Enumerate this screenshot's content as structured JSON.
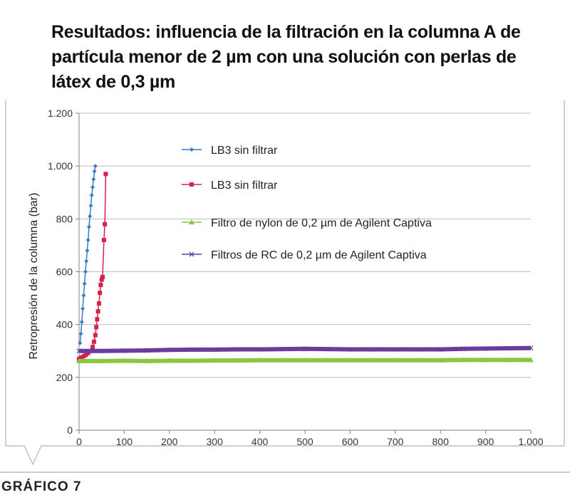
{
  "chart_data": {
    "type": "line",
    "title": "Resultados: influencia de la filtración en la columna A de partícula menor de 2 µm con una solución con perlas de látex de 0,3 µm",
    "xlabel": "",
    "ylabel": "Retropresión de la columna (bar)",
    "xlim": [
      0,
      1000
    ],
    "ylim": [
      0,
      1200
    ],
    "xticks": [
      0,
      100,
      200,
      300,
      400,
      500,
      600,
      700,
      800,
      900,
      1000
    ],
    "xtick_labels": [
      "0",
      "100",
      "200",
      "300",
      "400",
      "500",
      "600",
      "700",
      "800",
      "900",
      "1.000"
    ],
    "yticks": [
      0,
      200,
      400,
      600,
      800,
      1000,
      1200
    ],
    "ytick_labels": [
      "0",
      "200",
      "400",
      "600",
      "800",
      "1.000",
      "1.200"
    ],
    "grid": "horizontal",
    "legend_position": "inside-top-right",
    "series": [
      {
        "name": "LB3 sin filtrar",
        "color": "#3a7cc0",
        "marker": "diamond",
        "x": [
          2,
          4,
          6,
          8,
          10,
          12,
          14,
          16,
          18,
          20,
          22,
          24,
          26,
          28,
          30,
          32,
          34,
          36
        ],
        "y": [
          330,
          365,
          410,
          460,
          510,
          555,
          600,
          640,
          680,
          720,
          770,
          810,
          850,
          890,
          920,
          950,
          980,
          1000
        ]
      },
      {
        "name": "LB3 sin filtrar",
        "color": "#d6224a",
        "marker": "square",
        "x": [
          0,
          5,
          10,
          15,
          20,
          25,
          30,
          33,
          36,
          38,
          40,
          42,
          44,
          46,
          48,
          50,
          52,
          55,
          57,
          59
        ],
        "y": [
          270,
          275,
          280,
          285,
          292,
          300,
          315,
          335,
          360,
          390,
          420,
          450,
          480,
          520,
          550,
          570,
          580,
          720,
          780,
          970
        ]
      },
      {
        "name": "Filtro de nylon de 0,2 µm de Agilent Captiva",
        "color": "#8cc63f",
        "marker": "triangle",
        "x": [
          0,
          50,
          100,
          150,
          200,
          250,
          300,
          350,
          400,
          450,
          500,
          550,
          600,
          650,
          700,
          750,
          800,
          850,
          900,
          950,
          1000
        ],
        "y": [
          262,
          262,
          263,
          262,
          263,
          263,
          264,
          264,
          265,
          265,
          265,
          265,
          265,
          265,
          265,
          265,
          265,
          266,
          266,
          266,
          266
        ]
      },
      {
        "name": "Filtros de RC de 0,2 µm de Agilent Captiva",
        "color": "#6a3d9a",
        "marker": "x",
        "x": [
          0,
          50,
          100,
          150,
          200,
          250,
          300,
          350,
          400,
          450,
          500,
          550,
          600,
          650,
          700,
          750,
          800,
          850,
          900,
          950,
          1000
        ],
        "y": [
          300,
          300,
          301,
          302,
          304,
          305,
          305,
          306,
          306,
          307,
          308,
          307,
          306,
          306,
          306,
          306,
          306,
          308,
          309,
          310,
          311
        ]
      }
    ]
  },
  "caption": "GRÁFICO 7"
}
